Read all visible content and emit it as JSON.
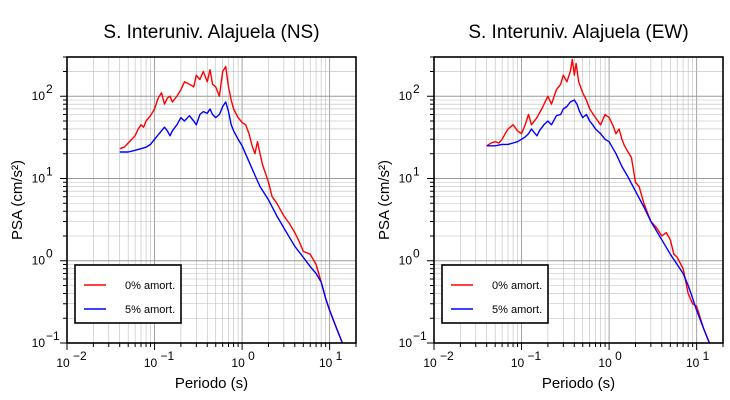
{
  "chart_data": [
    {
      "type": "line",
      "title": "S. Interuniv. Alajuela (NS)",
      "xlabel": "Periodo (s)",
      "ylabel": "PSA (cm/s²)",
      "xscale": "log",
      "yscale": "log",
      "xlim": [
        0.01,
        20
      ],
      "ylim": [
        0.1,
        300
      ],
      "xticks": [
        {
          "base": "10",
          "exp": "−2",
          "value": 0.01
        },
        {
          "base": "10",
          "exp": "−1",
          "value": 0.1
        },
        {
          "base": "10",
          "exp": "0",
          "value": 1
        },
        {
          "base": "10",
          "exp": "1",
          "value": 10
        }
      ],
      "yticks": [
        {
          "base": "10",
          "exp": "−1",
          "value": 0.1
        },
        {
          "base": "10",
          "exp": "0",
          "value": 1
        },
        {
          "base": "10",
          "exp": "1",
          "value": 10
        },
        {
          "base": "10",
          "exp": "2",
          "value": 100
        }
      ],
      "grid": true,
      "legend_position": "bottom-left",
      "series": [
        {
          "name": "0% amort.",
          "color": "#ff0000",
          "x": [
            0.04,
            0.045,
            0.05,
            0.055,
            0.06,
            0.065,
            0.07,
            0.075,
            0.08,
            0.09,
            0.1,
            0.11,
            0.12,
            0.13,
            0.14,
            0.15,
            0.16,
            0.18,
            0.2,
            0.22,
            0.25,
            0.28,
            0.3,
            0.33,
            0.36,
            0.4,
            0.43,
            0.46,
            0.5,
            0.55,
            0.6,
            0.65,
            0.7,
            0.75,
            0.8,
            0.9,
            1.0,
            1.1,
            1.2,
            1.3,
            1.4,
            1.5,
            1.7,
            2.0,
            2.2,
            2.5,
            2.8,
            3.0,
            3.5,
            4.0,
            4.5,
            5.0,
            6.0,
            7.0,
            8.0,
            9.0,
            10.0,
            12.0,
            14.0
          ],
          "y": [
            23,
            24,
            27,
            30,
            33,
            40,
            45,
            42,
            50,
            58,
            70,
            95,
            110,
            80,
            95,
            100,
            85,
            100,
            120,
            150,
            140,
            130,
            180,
            160,
            200,
            150,
            210,
            140,
            130,
            100,
            200,
            230,
            130,
            90,
            70,
            55,
            48,
            45,
            35,
            25,
            20,
            28,
            15,
            9,
            6,
            5,
            4,
            3.5,
            2.8,
            2.2,
            1.7,
            1.3,
            1.2,
            0.9,
            0.55,
            0.35,
            0.25,
            0.15,
            0.1
          ]
        },
        {
          "name": "5% amort.",
          "color": "#0000ff",
          "x": [
            0.04,
            0.05,
            0.06,
            0.07,
            0.08,
            0.09,
            0.1,
            0.11,
            0.12,
            0.13,
            0.14,
            0.15,
            0.16,
            0.18,
            0.2,
            0.22,
            0.25,
            0.28,
            0.3,
            0.33,
            0.36,
            0.4,
            0.43,
            0.46,
            0.5,
            0.55,
            0.6,
            0.65,
            0.7,
            0.75,
            0.8,
            0.9,
            1.0,
            1.2,
            1.4,
            1.6,
            2.0,
            2.5,
            3.0,
            4.0,
            5.0,
            6.0,
            7.0,
            8.0,
            9.0,
            10.0,
            12.0,
            14.0
          ],
          "y": [
            21,
            21,
            22,
            23,
            24,
            26,
            30,
            34,
            38,
            42,
            38,
            33,
            38,
            45,
            55,
            50,
            58,
            50,
            45,
            60,
            65,
            62,
            70,
            60,
            55,
            60,
            75,
            85,
            65,
            45,
            38,
            30,
            25,
            16,
            11,
            8,
            5.5,
            3.5,
            2.5,
            1.5,
            1.1,
            0.85,
            0.7,
            0.55,
            0.35,
            0.25,
            0.15,
            0.1
          ]
        }
      ]
    },
    {
      "type": "line",
      "title": "S. Interuniv. Alajuela (EW)",
      "xlabel": "Periodo (s)",
      "ylabel": "PSA (cm/s²)",
      "xscale": "log",
      "yscale": "log",
      "xlim": [
        0.01,
        20
      ],
      "ylim": [
        0.1,
        300
      ],
      "xticks": [
        {
          "base": "10",
          "exp": "−2",
          "value": 0.01
        },
        {
          "base": "10",
          "exp": "−1",
          "value": 0.1
        },
        {
          "base": "10",
          "exp": "0",
          "value": 1
        },
        {
          "base": "10",
          "exp": "1",
          "value": 10
        }
      ],
      "yticks": [
        {
          "base": "10",
          "exp": "−1",
          "value": 0.1
        },
        {
          "base": "10",
          "exp": "0",
          "value": 1
        },
        {
          "base": "10",
          "exp": "1",
          "value": 10
        },
        {
          "base": "10",
          "exp": "2",
          "value": 100
        }
      ],
      "grid": true,
      "legend_position": "bottom-left",
      "series": [
        {
          "name": "0% amort.",
          "color": "#ff0000",
          "x": [
            0.04,
            0.045,
            0.05,
            0.055,
            0.06,
            0.065,
            0.07,
            0.08,
            0.09,
            0.1,
            0.11,
            0.12,
            0.13,
            0.15,
            0.17,
            0.2,
            0.22,
            0.25,
            0.28,
            0.3,
            0.33,
            0.36,
            0.38,
            0.4,
            0.42,
            0.45,
            0.5,
            0.55,
            0.6,
            0.7,
            0.8,
            0.9,
            1.0,
            1.1,
            1.2,
            1.3,
            1.4,
            1.5,
            1.6,
            1.8,
            2.0,
            2.2,
            2.5,
            2.7,
            3.0,
            3.5,
            4.0,
            4.5,
            5.0,
            5.5,
            6.0,
            7.0,
            8.0,
            9.0,
            10.0,
            12.0,
            14.0
          ],
          "y": [
            25,
            27,
            28,
            27,
            30,
            35,
            40,
            45,
            38,
            35,
            45,
            60,
            45,
            55,
            70,
            100,
            80,
            120,
            140,
            180,
            150,
            200,
            280,
            180,
            250,
            150,
            110,
            90,
            70,
            55,
            45,
            60,
            55,
            45,
            35,
            40,
            30,
            25,
            22,
            18,
            9,
            8,
            5,
            4,
            3,
            2.5,
            2.0,
            2.2,
            1.8,
            1.2,
            1.1,
            0.8,
            0.4,
            0.3,
            0.28,
            0.15,
            0.1
          ]
        },
        {
          "name": "5% amort.",
          "color": "#0000ff",
          "x": [
            0.04,
            0.05,
            0.06,
            0.07,
            0.08,
            0.09,
            0.1,
            0.11,
            0.12,
            0.13,
            0.14,
            0.15,
            0.16,
            0.18,
            0.2,
            0.22,
            0.25,
            0.28,
            0.3,
            0.33,
            0.36,
            0.4,
            0.43,
            0.46,
            0.5,
            0.55,
            0.6,
            0.65,
            0.7,
            0.8,
            0.9,
            1.0,
            1.2,
            1.4,
            1.6,
            2.0,
            2.5,
            3.0,
            4.0,
            5.0,
            6.0,
            7.0,
            8.0,
            9.0,
            10.0,
            12.0,
            14.0
          ],
          "y": [
            25,
            25,
            26,
            26,
            27,
            28,
            30,
            32,
            35,
            40,
            36,
            33,
            38,
            45,
            50,
            45,
            58,
            60,
            70,
            75,
            85,
            90,
            80,
            65,
            55,
            60,
            50,
            45,
            40,
            35,
            30,
            28,
            20,
            14,
            11,
            7,
            4.5,
            3,
            1.8,
            1.2,
            0.9,
            0.7,
            0.5,
            0.35,
            0.25,
            0.15,
            0.1
          ]
        }
      ]
    }
  ]
}
